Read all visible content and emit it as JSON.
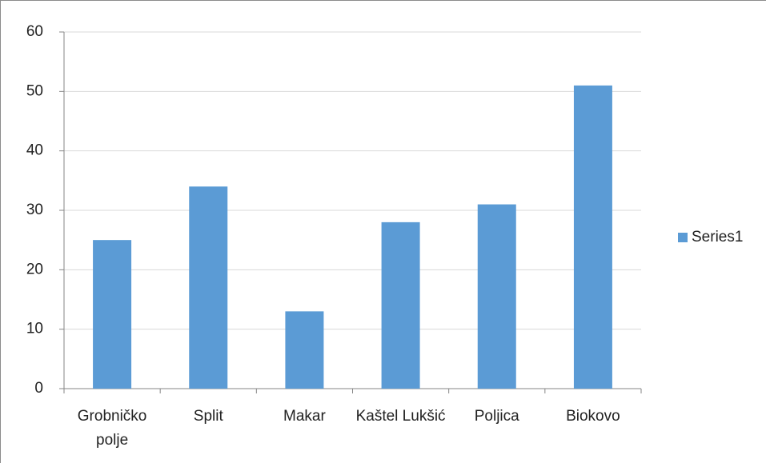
{
  "chart_data": {
    "type": "bar",
    "categories": [
      "Grobničko polje",
      "Split",
      "Makar",
      "Kaštel Lukšić",
      "Poljica",
      "Biokovo"
    ],
    "series": [
      {
        "name": "Series1",
        "color": "#5b9bd5",
        "values": [
          25,
          34,
          13,
          28,
          31,
          51
        ]
      }
    ],
    "ylim": [
      0,
      60
    ],
    "yticks": [
      0,
      10,
      20,
      30,
      40,
      50,
      60
    ],
    "grid": true,
    "legend": "right"
  }
}
